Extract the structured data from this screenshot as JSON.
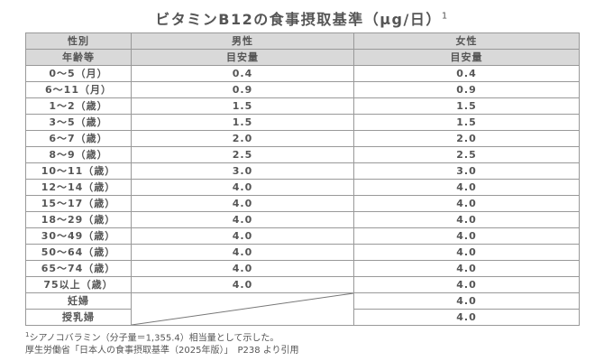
{
  "title": {
    "text": "ビタミンB12の食事摂取基準（μg/日）",
    "note_mark": "1"
  },
  "table": {
    "header": [
      [
        "性別",
        "男性",
        "女性"
      ],
      [
        "年齢等",
        "目安量",
        "目安量"
      ]
    ],
    "rows": [
      {
        "age": "0～5（月）",
        "male": "0.4",
        "female": "0.4"
      },
      {
        "age": "6～11（月）",
        "male": "0.9",
        "female": "0.9"
      },
      {
        "age": "1～2（歳）",
        "male": "1.5",
        "female": "1.5"
      },
      {
        "age": "3～5（歳）",
        "male": "1.5",
        "female": "1.5"
      },
      {
        "age": "6～7（歳）",
        "male": "2.0",
        "female": "2.0"
      },
      {
        "age": "8～9（歳）",
        "male": "2.5",
        "female": "2.5"
      },
      {
        "age": "10～11（歳）",
        "male": "3.0",
        "female": "3.0"
      },
      {
        "age": "12～14（歳）",
        "male": "4.0",
        "female": "4.0"
      },
      {
        "age": "15～17（歳）",
        "male": "4.0",
        "female": "4.0"
      },
      {
        "age": "18～29（歳）",
        "male": "4.0",
        "female": "4.0"
      },
      {
        "age": "30～49（歳）",
        "male": "4.0",
        "female": "4.0"
      },
      {
        "age": "50～64（歳）",
        "male": "4.0",
        "female": "4.0"
      },
      {
        "age": "65～74（歳）",
        "male": "4.0",
        "female": "4.0"
      },
      {
        "age": "75以上（歳）",
        "male": "4.0",
        "female": "4.0"
      },
      {
        "age": "妊婦",
        "female": "4.0"
      },
      {
        "age": "授乳婦",
        "female": "4.0"
      }
    ]
  },
  "footnote": {
    "mark": "1",
    "text": "シアノコバラミン（分子量＝1,355.4）相当量として示した。"
  },
  "source": "厚生労働省「日本人の食事摂取基準（2025年版）」　P238 より引用"
}
